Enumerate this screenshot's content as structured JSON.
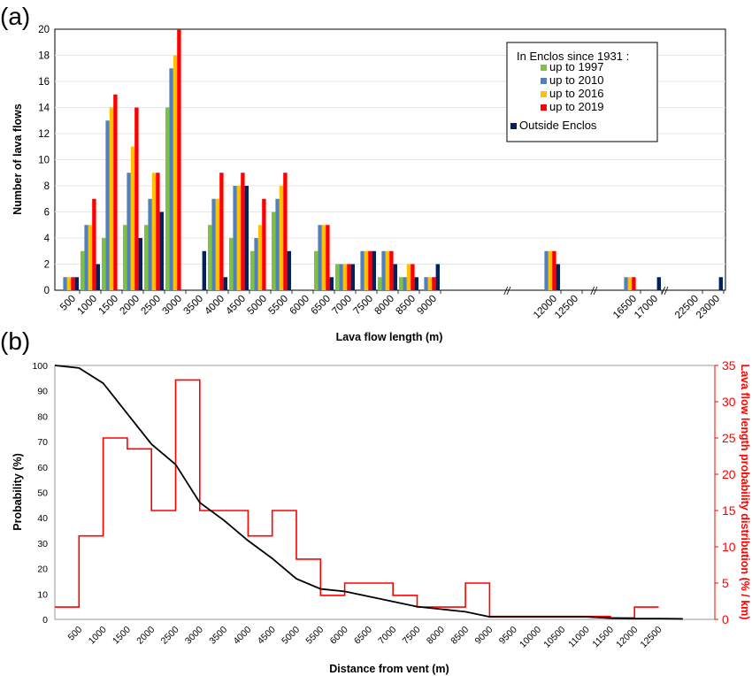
{
  "chart_data": [
    {
      "panel_label": "(a)",
      "type": "bar",
      "categories": [
        "500",
        "1000",
        "1500",
        "2000",
        "2500",
        "3000",
        "3500",
        "4000",
        "4500",
        "5000",
        "5500",
        "6000",
        "6500",
        "7000",
        "7500",
        "8000",
        "8500",
        "9000",
        "12000",
        "12500",
        "16500",
        "17000",
        "22500",
        "23000"
      ],
      "break_marks": [
        "//",
        "//",
        "//"
      ],
      "series": [
        {
          "name": "up to 1997",
          "color": "#7dc242",
          "values": [
            0,
            3,
            4,
            5,
            5,
            14,
            0,
            5,
            4,
            3,
            6,
            0,
            3,
            2,
            0,
            1,
            1,
            0,
            0,
            0,
            0,
            0,
            0,
            0
          ]
        },
        {
          "name": "up to 2010",
          "color": "#4f81bd",
          "values": [
            1,
            5,
            13,
            9,
            7,
            17,
            0,
            7,
            8,
            4,
            7,
            0,
            5,
            2,
            3,
            3,
            1,
            1,
            3,
            0,
            1,
            0,
            0,
            0
          ]
        },
        {
          "name": "up to 2016",
          "color": "#ffc000",
          "values": [
            1,
            5,
            14,
            11,
            9,
            18,
            0,
            7,
            8,
            5,
            8,
            0,
            5,
            2,
            3,
            3,
            2,
            1,
            3,
            0,
            1,
            0,
            0,
            0
          ]
        },
        {
          "name": "up to 2019",
          "color": "#ff0000",
          "values": [
            1,
            7,
            15,
            14,
            9,
            20,
            0,
            9,
            9,
            7,
            9,
            0,
            5,
            2,
            3,
            3,
            2,
            1,
            3,
            0,
            1,
            0,
            0,
            0
          ]
        },
        {
          "name": "Outside Enclos",
          "color": "#002060",
          "values": [
            1,
            2,
            0,
            4,
            6,
            0,
            3,
            1,
            8,
            0,
            3,
            0,
            1,
            2,
            3,
            2,
            1,
            2,
            2,
            0,
            0,
            1,
            0,
            1
          ]
        }
      ],
      "xlabel": "Lava flow length (m)",
      "ylabel": "Number of lava flows",
      "ylim": [
        0,
        20
      ],
      "yticks": [
        0,
        2,
        4,
        6,
        8,
        10,
        12,
        14,
        16,
        18,
        20
      ],
      "legend": {
        "heading": "In Enclos since 1931 :",
        "placement": "top-right"
      }
    },
    {
      "panel_label": "(b)",
      "type": "line",
      "x_categories": [
        "500",
        "1000",
        "1500",
        "2000",
        "2500",
        "3000",
        "3500",
        "4000",
        "4500",
        "5000",
        "5500",
        "6000",
        "6500",
        "7000",
        "7500",
        "8000",
        "8500",
        "9000",
        "9500",
        "10000",
        "10500",
        "11000",
        "11500",
        "12000",
        "12500"
      ],
      "xlabel": "Distance from vent (m)",
      "ylabel_left": "Probability (%)",
      "ylabel_right": "Lava flow length probability distribution (% / km)",
      "ylim_left": [
        0,
        100
      ],
      "ylim_right": [
        0,
        35
      ],
      "yticks_left": [
        0,
        10,
        20,
        30,
        40,
        50,
        60,
        70,
        80,
        90,
        100
      ],
      "yticks_right": [
        0,
        5,
        10,
        15,
        20,
        25,
        30,
        35
      ],
      "right_axis_color": "#ff0000",
      "series": [
        {
          "color": "#000000",
          "axis": "left",
          "x": [
            0,
            500,
            1000,
            1500,
            2000,
            2500,
            3000,
            3500,
            4000,
            4500,
            5000,
            5500,
            6000,
            6500,
            7000,
            7500,
            8000,
            8500,
            9000,
            9500,
            10000,
            10500,
            11000,
            11500,
            12000,
            12500,
            13000
          ],
          "y": [
            100,
            99,
            93,
            81,
            69,
            61,
            46,
            39,
            31,
            24,
            16,
            12,
            11,
            9,
            7,
            5,
            4,
            3,
            1,
            1,
            1,
            1,
            1,
            0.5,
            0.3,
            0.3,
            0.2
          ]
        },
        {
          "color": "#ff0000",
          "axis": "right",
          "style": "step",
          "edges": [
            0,
            500,
            1000,
            1500,
            2000,
            2500,
            3000,
            3500,
            4000,
            4500,
            5000,
            5500,
            6000,
            6500,
            7000,
            7500,
            8000,
            8500,
            9000,
            9500,
            10000,
            10500,
            11000,
            11500,
            12000,
            12500
          ],
          "values": [
            1.7,
            11.5,
            25,
            23.5,
            15,
            33,
            15,
            15,
            11.5,
            15,
            8.3,
            3.3,
            5,
            5,
            3.3,
            1.7,
            1.7,
            5,
            0.4,
            0.4,
            0.4,
            0.4,
            0.4,
            0.2,
            1.7
          ]
        }
      ]
    }
  ]
}
